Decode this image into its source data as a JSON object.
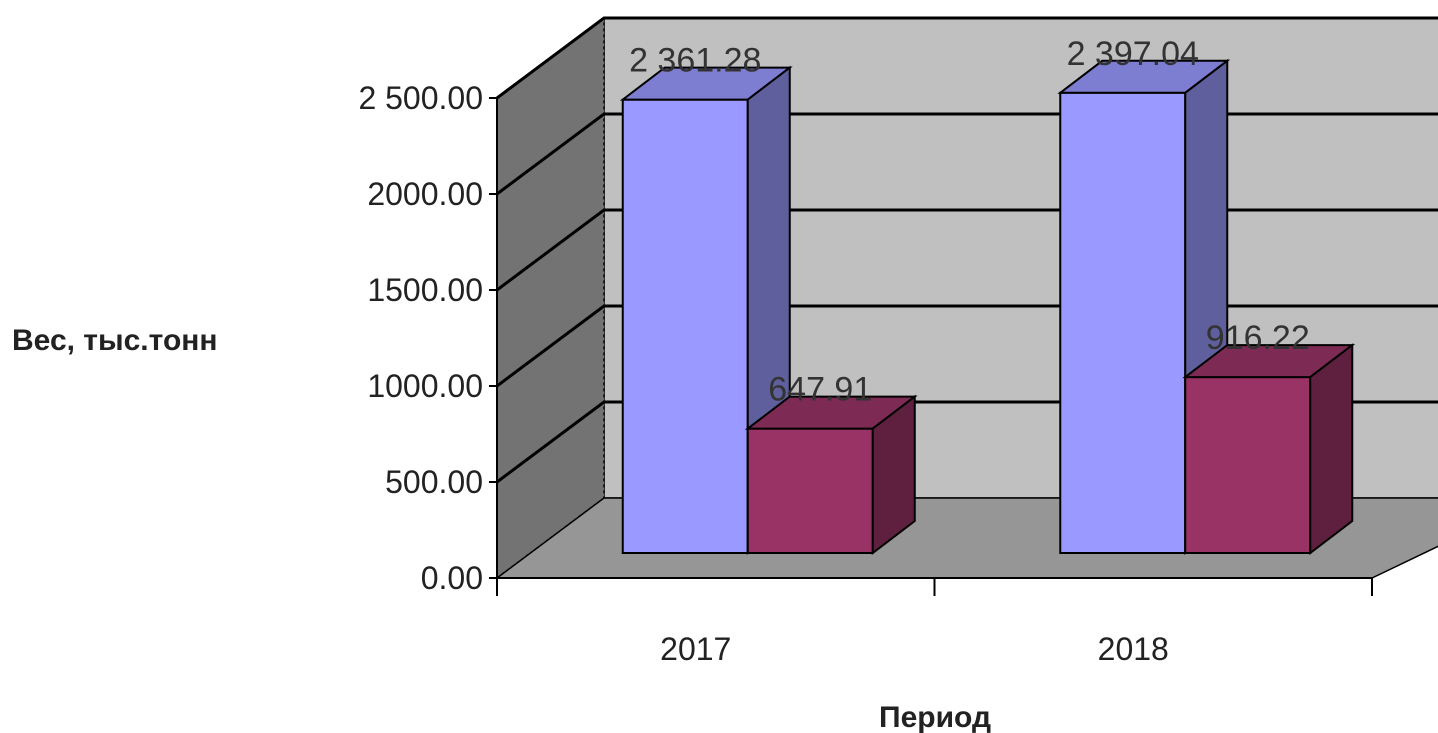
{
  "chart_data": {
    "type": "bar",
    "subtype": "3d-clustered-column",
    "categories": [
      "2017",
      "2018"
    ],
    "series": [
      {
        "values": [
          2361.28,
          2397.04
        ],
        "color": "#9999ff",
        "data_labels": [
          "2 361.28",
          "2 397.04"
        ]
      },
      {
        "values": [
          647.91,
          916.22
        ],
        "color": "#993366",
        "data_labels": [
          "647.91",
          "916.22"
        ]
      }
    ],
    "xlabel": "Период",
    "ylabel": "Вес, тыс.тонн",
    "ylim": [
      0,
      2500
    ],
    "yticks": [
      "0.00",
      "500.00",
      "1000.00",
      "1500.00",
      "2000.00",
      "2 500.00"
    ],
    "grid": true,
    "legend": "none",
    "wall_color": "#c0c0c0",
    "floor_color": "#969696"
  }
}
